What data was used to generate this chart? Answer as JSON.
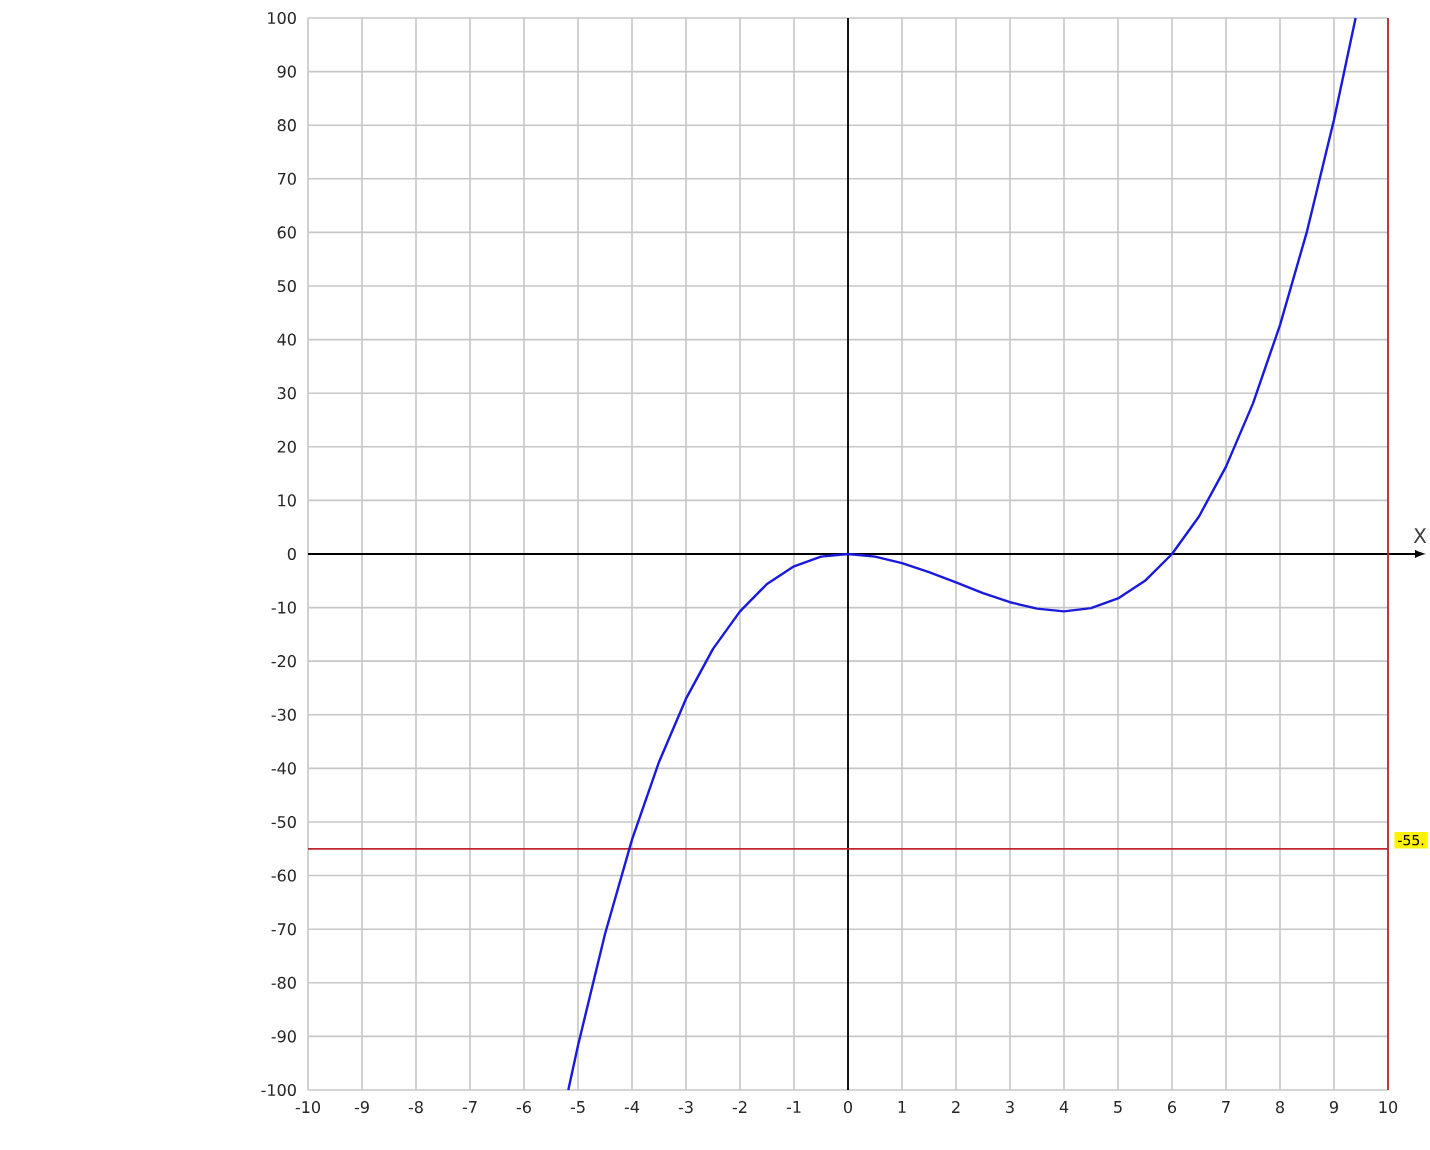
{
  "chart_data": {
    "type": "line",
    "xlabel": "X",
    "series": [
      {
        "color": "#1a1adb",
        "x": [
          -5.18,
          -5,
          -4.5,
          -4,
          -3.5,
          -3,
          -2.5,
          -2,
          -1.5,
          -1,
          -0.5,
          0,
          0.5,
          1,
          1.5,
          2,
          2.5,
          3,
          3.5,
          4,
          4.5,
          5,
          5.5,
          6,
          6.5,
          7,
          7.5,
          8,
          8.5,
          9,
          9.4
        ],
        "values": [
          -100,
          -91.7,
          -70.9,
          -53.3,
          -38.8,
          -27,
          -17.7,
          -10.7,
          -5.6,
          -2.3,
          -0.5,
          0,
          -0.5,
          -1.7,
          -3.4,
          -5.3,
          -7.3,
          -9,
          -10.2,
          -10.7,
          -10.1,
          -8.3,
          -5,
          0,
          7,
          16.3,
          28.1,
          42.7,
          60.2,
          81,
          100
        ]
      }
    ],
    "xlim": [
      -10,
      10
    ],
    "ylim": [
      -100,
      100
    ],
    "xticks": [
      -10,
      -9,
      -8,
      -7,
      -6,
      -5,
      -4,
      -3,
      -2,
      -1,
      0,
      1,
      2,
      3,
      4,
      5,
      6,
      7,
      8,
      9,
      10
    ],
    "yticks": [
      -100,
      -90,
      -80,
      -70,
      -60,
      -50,
      -40,
      -30,
      -20,
      -10,
      0,
      10,
      20,
      30,
      40,
      50,
      60,
      70,
      80,
      90,
      100
    ],
    "grid": true,
    "marker": "none",
    "line_style": "solid",
    "ref_lines": [
      {
        "axis": "x",
        "value": 10,
        "color": "#c0272d"
      },
      {
        "axis": "y",
        "value": -55,
        "label": "-55.",
        "color": "#c0272d"
      }
    ]
  }
}
